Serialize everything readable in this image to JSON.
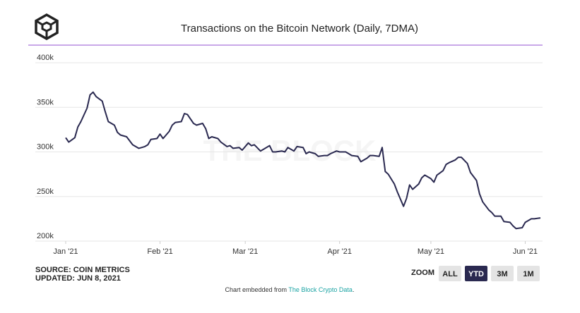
{
  "chart_data": {
    "type": "line",
    "title": "Transactions on the Bitcoin Network (Daily, 7DMA)",
    "watermark": "THE BLOCK",
    "source": "SOURCE: COIN METRICS",
    "updated": "UPDATED: JUN 8, 2021",
    "zoom": {
      "label": "ZOOM",
      "buttons": [
        "ALL",
        "YTD",
        "3M",
        "1M"
      ],
      "active": 1
    },
    "footer": {
      "text": "Chart embedded from ",
      "link": "The Block Crypto Data",
      "end": "."
    },
    "color": "#2a2950",
    "grid": true,
    "xlim": [
      0,
      156
    ],
    "xticks": [
      {
        "value": 0,
        "label": "Jan '21"
      },
      {
        "value": 31,
        "label": "Feb '21"
      },
      {
        "value": 59,
        "label": "Mar '21"
      },
      {
        "value": 90,
        "label": "Apr '21"
      },
      {
        "value": 120,
        "label": "May '21"
      },
      {
        "value": 151,
        "label": "Jun '21"
      }
    ],
    "ylim": [
      200000,
      400000
    ],
    "yticks": [
      {
        "value": 200000,
        "label": "200k"
      },
      {
        "value": 250000,
        "label": "250k"
      },
      {
        "value": 300000,
        "label": "300k"
      },
      {
        "value": 350000,
        "label": "350k"
      },
      {
        "value": 400000,
        "label": "400k"
      }
    ],
    "x": [
      0,
      1,
      3,
      4,
      5,
      7,
      8,
      9,
      10,
      12,
      13,
      14,
      16,
      17,
      18,
      20,
      22,
      23,
      24,
      26,
      27,
      28,
      30,
      31,
      32,
      34,
      35,
      36,
      38,
      39,
      40,
      42,
      43,
      45,
      46,
      47,
      48,
      50,
      51,
      53,
      54,
      55,
      57,
      58,
      60,
      61,
      62,
      64,
      65,
      67,
      68,
      69,
      71,
      72,
      73,
      75,
      76,
      78,
      79,
      80,
      82,
      83,
      85,
      86,
      87,
      89,
      90,
      92,
      93,
      94,
      96,
      97,
      99,
      100,
      101,
      103,
      104,
      105,
      106,
      108,
      109,
      111,
      112,
      113,
      114,
      116,
      117,
      118,
      120,
      121,
      122,
      124,
      125,
      126,
      128,
      129,
      130,
      132,
      133,
      135,
      136,
      137,
      139,
      140,
      141,
      143,
      144,
      146,
      147,
      148,
      150,
      151,
      153,
      154,
      156
    ],
    "values": [
      316000,
      311000,
      316000,
      328000,
      334000,
      349000,
      364000,
      367000,
      362000,
      357000,
      345000,
      334000,
      330000,
      322000,
      319000,
      317000,
      308000,
      306000,
      304000,
      306000,
      308000,
      314000,
      315000,
      320000,
      315000,
      323000,
      330000,
      333000,
      334000,
      343000,
      342000,
      332000,
      330000,
      332000,
      326000,
      315000,
      317000,
      315000,
      311000,
      306000,
      307000,
      304000,
      305000,
      302000,
      310000,
      307000,
      308000,
      301000,
      303000,
      307000,
      300000,
      300000,
      301000,
      300000,
      305000,
      301000,
      306000,
      305000,
      298000,
      300000,
      298000,
      295000,
      296000,
      296000,
      298000,
      301000,
      300000,
      300000,
      298000,
      296000,
      295000,
      289000,
      293000,
      296000,
      296000,
      295000,
      305000,
      278000,
      275000,
      264000,
      255000,
      239000,
      248000,
      263000,
      258000,
      264000,
      271000,
      274000,
      270000,
      266000,
      274000,
      279000,
      286000,
      288000,
      291000,
      294000,
      294000,
      287000,
      277000,
      268000,
      253000,
      244000,
      235000,
      232000,
      228000,
      228000,
      222000,
      221000,
      217000,
      214000,
      215000,
      221000,
      225000,
      225000,
      226000
    ]
  }
}
